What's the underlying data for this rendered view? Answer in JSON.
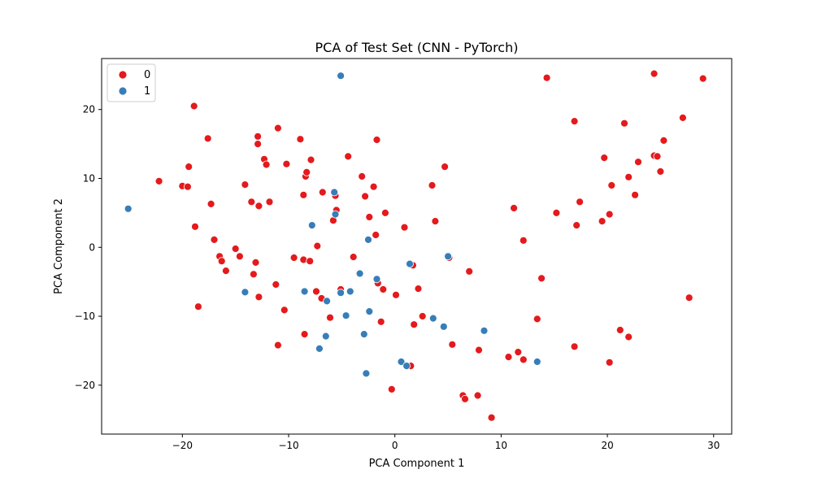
{
  "chart_data": {
    "type": "scatter",
    "title": "PCA of Test Set (CNN - PyTorch)",
    "xlabel": "PCA Component 1",
    "ylabel": "PCA Component 2",
    "xlim": [
      -27.6,
      31.7
    ],
    "ylim": [
      -27.1,
      27.4
    ],
    "xticks": [
      -20,
      -10,
      0,
      10,
      20,
      30
    ],
    "yticks": [
      -20,
      -10,
      0,
      10,
      20
    ],
    "grid": false,
    "legend_placement": "top-left",
    "legend_title": "",
    "colors": {
      "0": "#e41a1c",
      "1": "#377eb8"
    },
    "series": [
      {
        "name": "0",
        "color": "#e41a1c",
        "points": [
          [
            -22.2,
            9.6
          ],
          [
            -20.0,
            8.9
          ],
          [
            -19.5,
            8.8
          ],
          [
            -19.4,
            11.7
          ],
          [
            -18.9,
            20.5
          ],
          [
            -18.8,
            3.0
          ],
          [
            -18.5,
            -8.6
          ],
          [
            -17.6,
            15.8
          ],
          [
            -17.3,
            6.3
          ],
          [
            -17.0,
            1.1
          ],
          [
            -16.5,
            -1.3
          ],
          [
            -16.3,
            -2.0
          ],
          [
            -15.9,
            -3.4
          ],
          [
            -15.0,
            -0.2
          ],
          [
            -14.6,
            -1.3
          ],
          [
            -14.1,
            9.1
          ],
          [
            -13.5,
            6.6
          ],
          [
            -13.3,
            -3.9
          ],
          [
            -13.1,
            -2.2
          ],
          [
            -12.9,
            15.0
          ],
          [
            -12.9,
            16.1
          ],
          [
            -12.8,
            6.0
          ],
          [
            -12.8,
            -7.2
          ],
          [
            -12.3,
            12.8
          ],
          [
            -12.1,
            12.0
          ],
          [
            -11.8,
            6.6
          ],
          [
            -11.2,
            -5.4
          ],
          [
            -11.0,
            17.3
          ],
          [
            -11.0,
            -14.2
          ],
          [
            -10.4,
            -9.1
          ],
          [
            -10.2,
            12.1
          ],
          [
            -9.5,
            -1.5
          ],
          [
            -8.9,
            15.7
          ],
          [
            -8.6,
            -1.8
          ],
          [
            -8.5,
            -12.6
          ],
          [
            -8.6,
            7.6
          ],
          [
            -8.4,
            10.3
          ],
          [
            -8.3,
            10.9
          ],
          [
            -8.0,
            -2.0
          ],
          [
            -7.9,
            12.7
          ],
          [
            -7.4,
            -6.4
          ],
          [
            -7.3,
            0.2
          ],
          [
            -6.9,
            -7.4
          ],
          [
            -6.8,
            8.0
          ],
          [
            -6.1,
            -10.2
          ],
          [
            -5.8,
            3.9
          ],
          [
            -5.6,
            7.5
          ],
          [
            -5.5,
            5.4
          ],
          [
            -5.1,
            -6.1
          ],
          [
            -4.4,
            13.2
          ],
          [
            -3.9,
            -1.4
          ],
          [
            -3.1,
            10.3
          ],
          [
            -2.8,
            7.4
          ],
          [
            -2.4,
            4.4
          ],
          [
            -2.0,
            8.8
          ],
          [
            -1.8,
            1.8
          ],
          [
            -1.7,
            15.6
          ],
          [
            -1.6,
            -5.2
          ],
          [
            -1.3,
            -10.8
          ],
          [
            -1.1,
            -6.1
          ],
          [
            -0.9,
            5.0
          ],
          [
            -0.3,
            -20.6
          ],
          [
            0.1,
            -6.9
          ],
          [
            0.9,
            2.9
          ],
          [
            1.5,
            -17.2
          ],
          [
            1.7,
            -2.6
          ],
          [
            1.8,
            -11.2
          ],
          [
            2.2,
            -6.0
          ],
          [
            2.6,
            -10.0
          ],
          [
            3.5,
            9.0
          ],
          [
            3.8,
            3.8
          ],
          [
            4.7,
            11.7
          ],
          [
            5.1,
            -1.5
          ],
          [
            5.4,
            -14.1
          ],
          [
            6.4,
            -21.5
          ],
          [
            6.6,
            -22.0
          ],
          [
            7.0,
            -3.5
          ],
          [
            7.8,
            -21.5
          ],
          [
            7.9,
            -14.9
          ],
          [
            9.1,
            -24.7
          ],
          [
            10.7,
            -15.9
          ],
          [
            11.2,
            5.7
          ],
          [
            11.6,
            -15.2
          ],
          [
            12.1,
            -16.3
          ],
          [
            12.1,
            1.0
          ],
          [
            13.4,
            -10.4
          ],
          [
            13.8,
            -4.5
          ],
          [
            14.3,
            24.6
          ],
          [
            15.2,
            5.0
          ],
          [
            16.9,
            18.3
          ],
          [
            16.9,
            -14.4
          ],
          [
            17.1,
            3.2
          ],
          [
            17.4,
            6.6
          ],
          [
            19.5,
            3.8
          ],
          [
            19.7,
            13.0
          ],
          [
            20.2,
            -16.7
          ],
          [
            20.2,
            4.8
          ],
          [
            20.4,
            9.0
          ],
          [
            21.2,
            -12.0
          ],
          [
            21.6,
            18.0
          ],
          [
            22.0,
            10.2
          ],
          [
            22.0,
            -13.0
          ],
          [
            22.6,
            7.6
          ],
          [
            22.9,
            12.4
          ],
          [
            24.4,
            25.2
          ],
          [
            24.4,
            13.3
          ],
          [
            24.7,
            13.2
          ],
          [
            25.0,
            11.0
          ],
          [
            25.3,
            15.5
          ],
          [
            27.1,
            18.8
          ],
          [
            27.7,
            -7.3
          ],
          [
            29.0,
            24.5
          ]
        ]
      },
      {
        "name": "1",
        "color": "#377eb8",
        "points": [
          [
            -25.1,
            5.6
          ],
          [
            -14.1,
            -6.5
          ],
          [
            -8.5,
            -6.4
          ],
          [
            -7.8,
            3.2
          ],
          [
            -7.1,
            -14.7
          ],
          [
            -6.5,
            -12.9
          ],
          [
            -6.4,
            -7.8
          ],
          [
            -5.7,
            8.0
          ],
          [
            -5.6,
            4.8
          ],
          [
            -5.1,
            24.9
          ],
          [
            -5.1,
            -6.6
          ],
          [
            -4.6,
            -9.9
          ],
          [
            -4.2,
            -6.4
          ],
          [
            -3.3,
            -3.8
          ],
          [
            -2.9,
            -12.6
          ],
          [
            -2.7,
            -18.3
          ],
          [
            -2.5,
            1.1
          ],
          [
            -2.4,
            -9.3
          ],
          [
            -1.7,
            -4.6
          ],
          [
            0.6,
            -16.6
          ],
          [
            1.1,
            -17.2
          ],
          [
            1.4,
            -2.4
          ],
          [
            3.6,
            -10.3
          ],
          [
            4.6,
            -11.5
          ],
          [
            5.0,
            -1.3
          ],
          [
            8.4,
            -12.1
          ],
          [
            13.4,
            -16.6
          ]
        ]
      }
    ]
  }
}
